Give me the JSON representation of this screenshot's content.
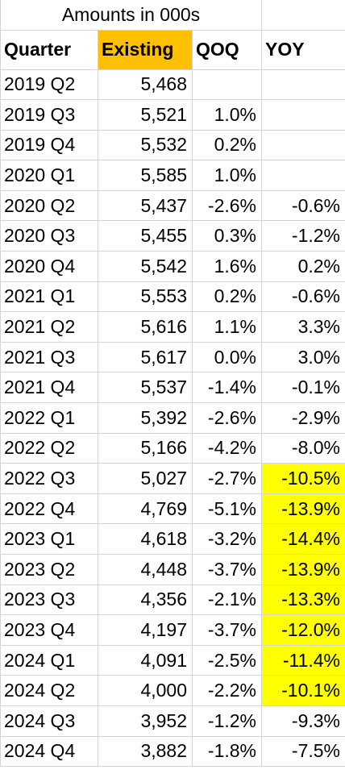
{
  "title": "Amounts in 000s",
  "headers": {
    "quarter": "Quarter",
    "existing": "Existing",
    "qoq": "QOQ",
    "yoy": "YOY"
  },
  "colors": {
    "header_highlight": "#ffc000",
    "yoy_highlight": "#ffff00",
    "gridline": "#d4d4d4"
  },
  "rows": [
    {
      "quarter": "2019 Q2",
      "existing": "5,468",
      "qoq": "",
      "yoy": "",
      "highlight": false
    },
    {
      "quarter": "2019 Q3",
      "existing": "5,521",
      "qoq": "1.0%",
      "yoy": "",
      "highlight": false
    },
    {
      "quarter": "2019 Q4",
      "existing": "5,532",
      "qoq": "0.2%",
      "yoy": "",
      "highlight": false
    },
    {
      "quarter": "2020 Q1",
      "existing": "5,585",
      "qoq": "1.0%",
      "yoy": "",
      "highlight": false
    },
    {
      "quarter": "2020 Q2",
      "existing": "5,437",
      "qoq": "-2.6%",
      "yoy": "-0.6%",
      "highlight": false
    },
    {
      "quarter": "2020 Q3",
      "existing": "5,455",
      "qoq": "0.3%",
      "yoy": "-1.2%",
      "highlight": false
    },
    {
      "quarter": "2020 Q4",
      "existing": "5,542",
      "qoq": "1.6%",
      "yoy": "0.2%",
      "highlight": false
    },
    {
      "quarter": "2021 Q1",
      "existing": "5,553",
      "qoq": "0.2%",
      "yoy": "-0.6%",
      "highlight": false
    },
    {
      "quarter": "2021 Q2",
      "existing": "5,616",
      "qoq": "1.1%",
      "yoy": "3.3%",
      "highlight": false
    },
    {
      "quarter": "2021 Q3",
      "existing": "5,617",
      "qoq": "0.0%",
      "yoy": "3.0%",
      "highlight": false
    },
    {
      "quarter": "2021 Q4",
      "existing": "5,537",
      "qoq": "-1.4%",
      "yoy": "-0.1%",
      "highlight": false
    },
    {
      "quarter": "2022 Q1",
      "existing": "5,392",
      "qoq": "-2.6%",
      "yoy": "-2.9%",
      "highlight": false
    },
    {
      "quarter": "2022 Q2",
      "existing": "5,166",
      "qoq": "-4.2%",
      "yoy": "-8.0%",
      "highlight": false
    },
    {
      "quarter": "2022 Q3",
      "existing": "5,027",
      "qoq": "-2.7%",
      "yoy": "-10.5%",
      "highlight": true
    },
    {
      "quarter": "2022 Q4",
      "existing": "4,769",
      "qoq": "-5.1%",
      "yoy": "-13.9%",
      "highlight": true
    },
    {
      "quarter": "2023 Q1",
      "existing": "4,618",
      "qoq": "-3.2%",
      "yoy": "-14.4%",
      "highlight": true
    },
    {
      "quarter": "2023 Q2",
      "existing": "4,448",
      "qoq": "-3.7%",
      "yoy": "-13.9%",
      "highlight": true
    },
    {
      "quarter": "2023 Q3",
      "existing": "4,356",
      "qoq": "-2.1%",
      "yoy": "-13.3%",
      "highlight": true
    },
    {
      "quarter": "2023 Q4",
      "existing": "4,197",
      "qoq": "-3.7%",
      "yoy": "-12.0%",
      "highlight": true
    },
    {
      "quarter": "2024 Q1",
      "existing": "4,091",
      "qoq": "-2.5%",
      "yoy": "-11.4%",
      "highlight": true
    },
    {
      "quarter": "2024 Q2",
      "existing": "4,000",
      "qoq": "-2.2%",
      "yoy": "-10.1%",
      "highlight": true
    },
    {
      "quarter": "2024 Q3",
      "existing": "3,952",
      "qoq": "-1.2%",
      "yoy": "-9.3%",
      "highlight": false
    },
    {
      "quarter": "2024 Q4",
      "existing": "3,882",
      "qoq": "-1.8%",
      "yoy": "-7.5%",
      "highlight": false
    }
  ]
}
